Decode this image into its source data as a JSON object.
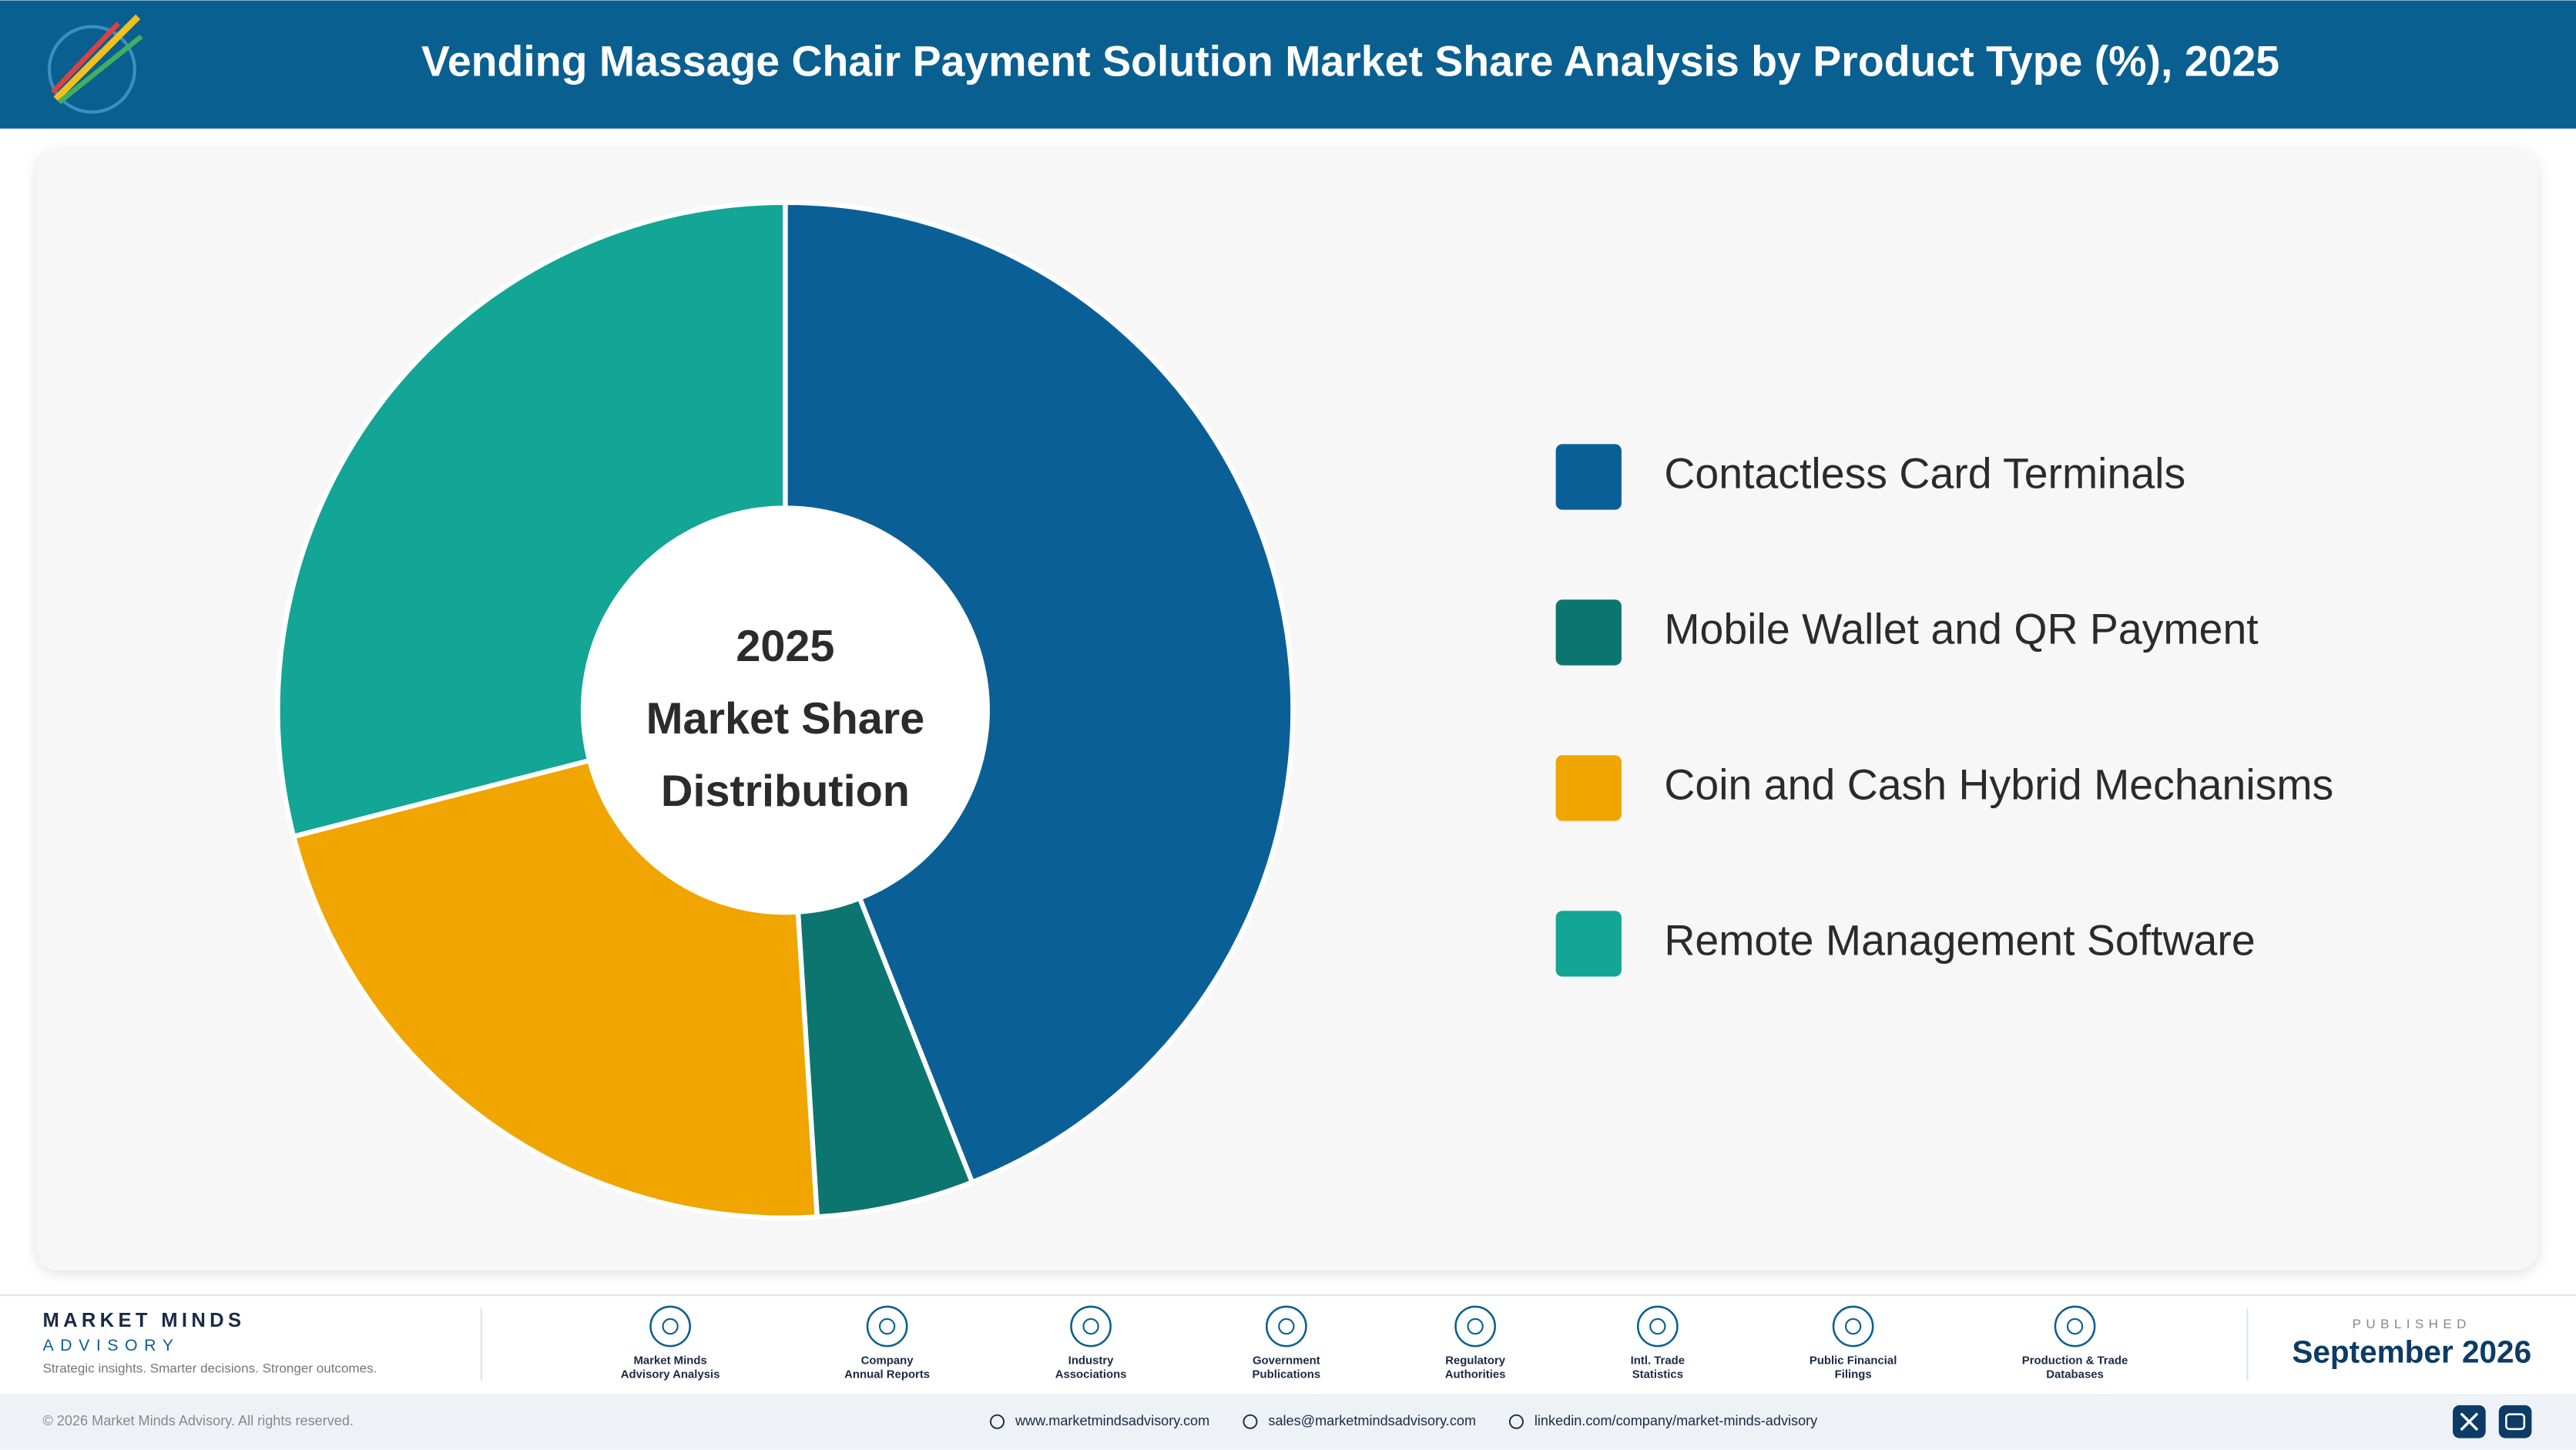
{
  "header": {
    "title": "Vending Massage Chair Payment Solution Market Share Analysis by Product Type (%), 2025"
  },
  "chart_data": {
    "type": "donut",
    "center_label": [
      "2025",
      "Market Share",
      "Distribution"
    ],
    "categories": [
      "Contactless Card Terminals",
      "Mobile Wallet and QR Payment",
      "Coin and Cash Hybrid Mechanisms",
      "Remote Management Software"
    ],
    "values": [
      44,
      5,
      22,
      29
    ],
    "colors": [
      "#0a6096",
      "#0d7570",
      "#f0a500",
      "#13a595"
    ],
    "legend": "right"
  },
  "footer": {
    "brand": "MARKET MINDS",
    "brand_sub": "ADVISORY",
    "tagline": "Strategic insights. Smarter decisions. Stronger outcomes.",
    "sources": [
      [
        "Market Minds",
        "Advisory Analysis"
      ],
      [
        "Company",
        "Annual Reports"
      ],
      [
        "Industry",
        "Associations"
      ],
      [
        "Government",
        "Publications"
      ],
      [
        "Regulatory",
        "Authorities"
      ],
      [
        "Intl. Trade",
        "Statistics"
      ],
      [
        "Public Financial",
        "Filings"
      ],
      [
        "Production & Trade",
        "Databases"
      ]
    ],
    "published_label": "PUBLISHED",
    "published": "September 2026",
    "copyright": "© 2026 Market Minds Advisory. All rights reserved.",
    "contacts": [
      "www.marketmindsadvisory.com",
      "sales@marketmindsadvisory.com",
      "linkedin.com/company/market-minds-advisory"
    ]
  }
}
